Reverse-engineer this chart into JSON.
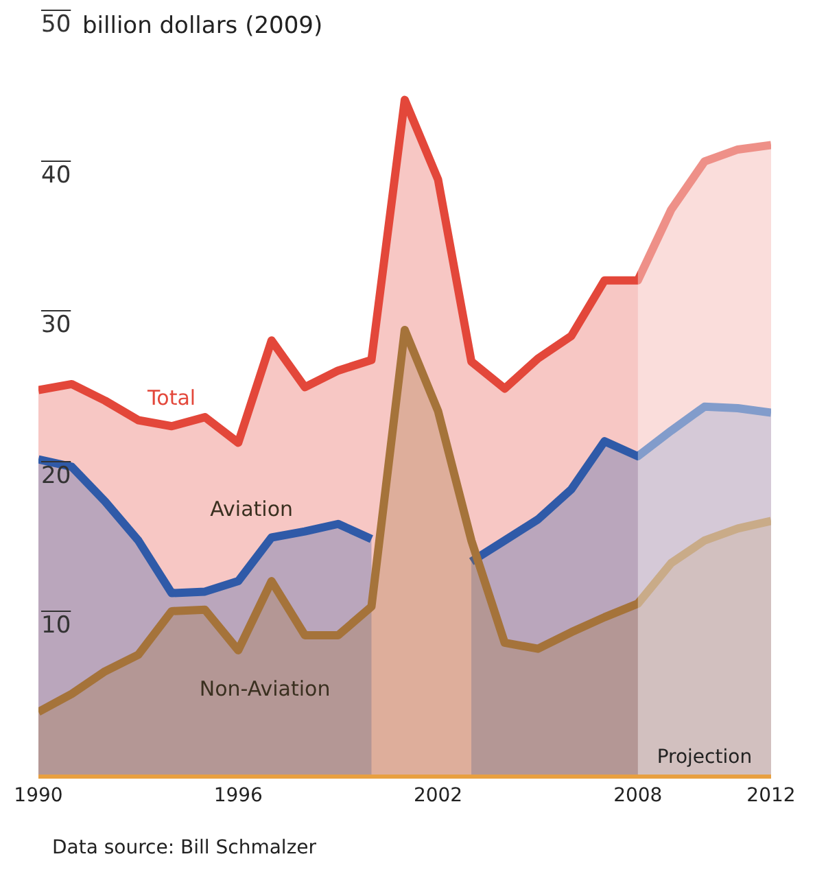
{
  "chart_data": {
    "type": "area",
    "ylabel": "billion dollars (2009)",
    "x": [
      1990,
      1991,
      1992,
      1993,
      1994,
      1995,
      1996,
      1997,
      1998,
      1999,
      2000,
      2001,
      2002,
      2003,
      2004,
      2005,
      2006,
      2007,
      2008,
      2009,
      2010,
      2011,
      2012
    ],
    "series": [
      {
        "name": "Total",
        "color": "#e3473a",
        "values": [
          25.7,
          26.1,
          25,
          23.7,
          23.3,
          23.9,
          22.2,
          29,
          25.9,
          27,
          27.7,
          45,
          39.7,
          27.6,
          25.8,
          27.8,
          29.3,
          33,
          33,
          37.7,
          40.9,
          41.7,
          42
        ]
      },
      {
        "name": "Aviation",
        "color": "#2f5aa8",
        "values": [
          21.1,
          20.6,
          18.3,
          15.7,
          12.2,
          12.3,
          13,
          15.9,
          16.3,
          16.8,
          15.8,
          null,
          null,
          14.3,
          15.7,
          17.1,
          19.1,
          22.3,
          21.3,
          23,
          24.6,
          24.5,
          24.2
        ]
      },
      {
        "name": "Non-Aviation",
        "color": "#a5733a",
        "values": [
          4.3,
          5.5,
          7,
          8.1,
          11,
          11.1,
          8.4,
          13,
          9.4,
          9.4,
          11.3,
          29.7,
          24.3,
          15.7,
          8.9,
          8.5,
          9.6,
          10.6,
          11.5,
          14.2,
          15.7,
          16.5,
          17
        ]
      }
    ],
    "xlim": [
      1990,
      2012
    ],
    "xticks": [
      1990,
      1996,
      2002,
      2008,
      2012
    ],
    "ylim": [
      0,
      50
    ],
    "yticks": [
      10,
      20,
      30,
      40,
      50
    ],
    "bands": [
      {
        "axis": "x",
        "from": 2008,
        "to": 2012,
        "label": "Projection",
        "color": "#ffffff"
      }
    ],
    "annotations": [
      "Data source: Bill Schmalzer"
    ],
    "grid": false,
    "legend": false
  }
}
